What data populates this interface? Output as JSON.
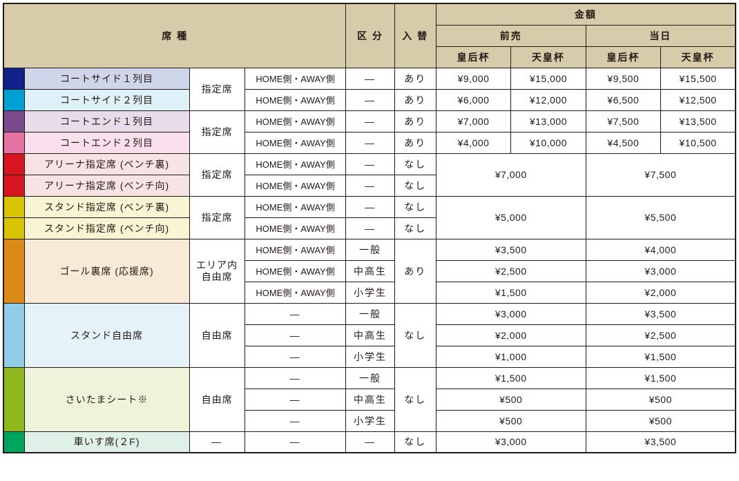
{
  "header": {
    "seat_type": "席 種",
    "classification": "区 分",
    "change": "入 替",
    "amount": "金額",
    "advance": "前売",
    "day_of": "当日",
    "empress_cup": "皇后杯",
    "emperor_cup": "天皇杯"
  },
  "common": {
    "reserved": "指定席",
    "area_free_l1": "エリア内",
    "area_free_l2": "自由席",
    "free": "自由席",
    "home_away": "HOME側・AWAY側",
    "dash": "―",
    "yes": "あり",
    "no": "なし",
    "general": "一般",
    "mid_high": "中高生",
    "elementary": "小学生"
  },
  "swatch": {
    "courtside1": "#0f218b",
    "courtside2": "#00a0d2",
    "courtend1": "#7b4a8e",
    "courtend2": "#e673a3",
    "arena_back": "#d7151e",
    "arena_front": "#d7151e",
    "stand_res_back": "#d8c400",
    "stand_res_front": "#d8c400",
    "goal": "#d98a17",
    "stand_free": "#8fcde9",
    "saitama": "#8fb81f",
    "wheelchair": "#00a55f"
  },
  "row_bg": {
    "courtside1": "#d0d6ea",
    "courtside2": "#def0f8",
    "courtend1": "#e7dcea",
    "courtend2": "#fae0ec",
    "arena": "#f8e3e4",
    "stand_res": "#f8f4d4",
    "goal": "#f7ead6",
    "stand_free": "#e6f2f9",
    "saitama": "#eef3da",
    "wheelchair": "#dff0e9"
  },
  "seats": {
    "courtside1": "コートサイド１列目",
    "courtside2": "コートサイド２列目",
    "courtend1": "コートエンド１列目",
    "courtend2": "コートエンド２列目",
    "arena_back": "アリーナ指定席 (ベンチ裏)",
    "arena_front": "アリーナ指定席 (ベンチ向)",
    "stand_res_back": "スタンド指定席 (ベンチ裏)",
    "stand_res_front": "スタンド指定席 (ベンチ向)",
    "goal": "ゴール裏席 (応援席)",
    "stand_free": "スタンド自由席",
    "saitama": "さいたまシート※",
    "wheelchair": "車いす席(２F)"
  },
  "prices": {
    "courtside1": {
      "adv_k": "¥9,000",
      "adv_t": "¥15,000",
      "day_k": "¥9,500",
      "day_t": "¥15,500"
    },
    "courtside2": {
      "adv_k": "¥6,000",
      "adv_t": "¥12,000",
      "day_k": "¥6,500",
      "day_t": "¥12,500"
    },
    "courtend1": {
      "adv_k": "¥7,000",
      "adv_t": "¥13,000",
      "day_k": "¥7,500",
      "day_t": "¥13,500"
    },
    "courtend2": {
      "adv_k": "¥4,000",
      "adv_t": "¥10,000",
      "day_k": "¥4,500",
      "day_t": "¥10,500"
    },
    "arena": {
      "adv": "¥7,000",
      "day": "¥7,500"
    },
    "stand_res": {
      "adv": "¥5,000",
      "day": "¥5,500"
    },
    "goal_gen": {
      "adv": "¥3,500",
      "day": "¥4,000"
    },
    "goal_mid": {
      "adv": "¥2,500",
      "day": "¥3,000"
    },
    "goal_ele": {
      "adv": "¥1,500",
      "day": "¥2,000"
    },
    "sf_gen": {
      "adv": "¥3,000",
      "day": "¥3,500"
    },
    "sf_mid": {
      "adv": "¥2,000",
      "day": "¥2,500"
    },
    "sf_ele": {
      "adv": "¥1,000",
      "day": "¥1,500"
    },
    "sai_gen": {
      "adv": "¥1,500",
      "day": "¥1,500"
    },
    "sai_mid": {
      "adv": "¥500",
      "day": "¥500"
    },
    "sai_ele": {
      "adv": "¥500",
      "day": "¥500"
    },
    "wheel": {
      "adv": "¥3,000",
      "day": "¥3,500"
    }
  }
}
